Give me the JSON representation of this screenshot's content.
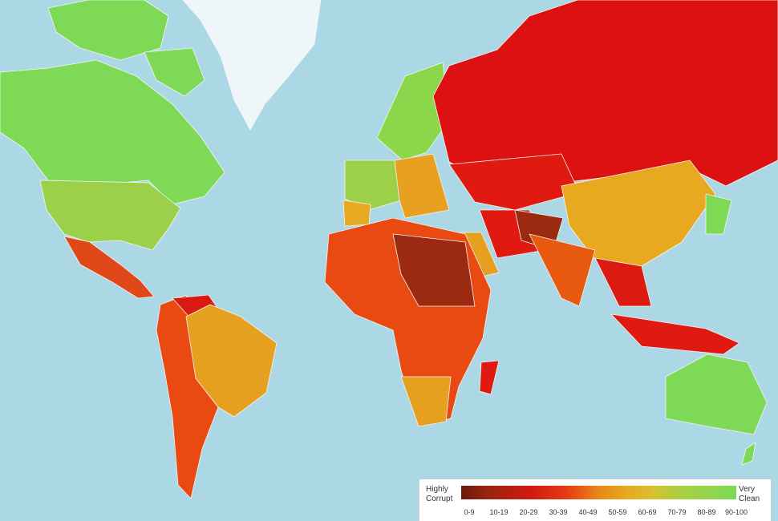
{
  "legend": {
    "low_label": "Highly Corrupt",
    "high_label": "Very Clean",
    "ranges": [
      "0-9",
      "10-19",
      "20-29",
      "30-39",
      "40-49",
      "50-59",
      "60-69",
      "70-79",
      "80-89",
      "90-100"
    ]
  }
}
